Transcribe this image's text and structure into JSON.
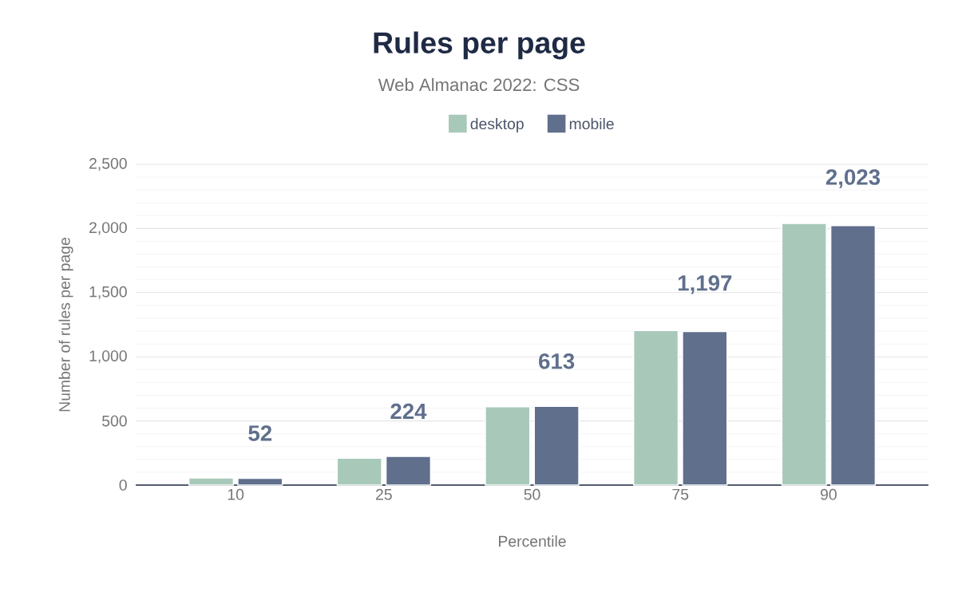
{
  "chart_data": {
    "type": "bar",
    "title": "Rules per page",
    "subtitle": "Web Almanac 2022: CSS",
    "xlabel": "Percentile",
    "ylabel": "Number of rules per page",
    "categories": [
      "10",
      "25",
      "50",
      "75",
      "90"
    ],
    "series": [
      {
        "name": "desktop",
        "color": "#a8c9b9",
        "values": [
          55,
          210,
          610,
          1205,
          2040
        ]
      },
      {
        "name": "mobile",
        "color": "#5f6f8c",
        "values": [
          52,
          224,
          613,
          1197,
          2023
        ],
        "value_labels": [
          "52",
          "224",
          "613",
          "1,197",
          "2,023"
        ]
      }
    ],
    "ylim": [
      0,
      2500
    ],
    "yticks": [
      0,
      500,
      {
        "value": 1000,
        "label": "1,000"
      },
      {
        "value": 1500,
        "label": "1,500"
      },
      {
        "value": 2000,
        "label": "2,000"
      },
      {
        "value": 2500,
        "label": "2,500"
      }
    ],
    "grid": "y",
    "legend": "top"
  }
}
